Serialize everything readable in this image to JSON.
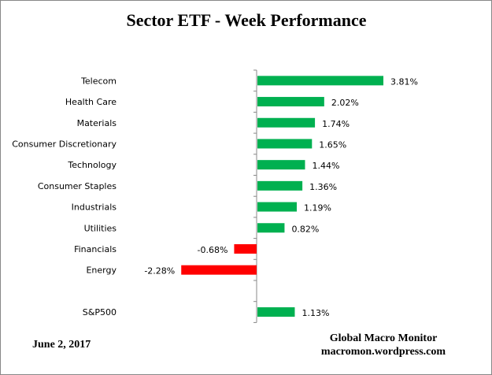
{
  "chart_data": {
    "type": "bar",
    "orientation": "horizontal",
    "title": "Sector ETF - Week Performance",
    "categories": [
      "Telecom",
      "Health Care",
      "Materials",
      "Consumer Discretionary",
      "Technology",
      "Consumer Staples",
      "Industrials",
      "Utilities",
      "Financials",
      "Energy",
      "",
      "S&P500"
    ],
    "values": [
      3.81,
      2.02,
      1.74,
      1.65,
      1.44,
      1.36,
      1.19,
      0.82,
      -0.68,
      -2.28,
      null,
      1.13
    ],
    "data_labels": [
      "3.81%",
      "2.02%",
      "1.74%",
      "1.65%",
      "1.44%",
      "1.36%",
      "1.19%",
      "0.82%",
      "-0.68%",
      "-2.28%",
      "",
      "1.13%"
    ],
    "colors": {
      "positive": "#00b050",
      "negative": "#ff0000",
      "axis": "#888888"
    },
    "grid": false,
    "legend": "none"
  },
  "footer": {
    "date": "June 2, 2017",
    "source_line1": "Global Macro Monitor",
    "source_line2": "macromon.wordpress.com"
  }
}
